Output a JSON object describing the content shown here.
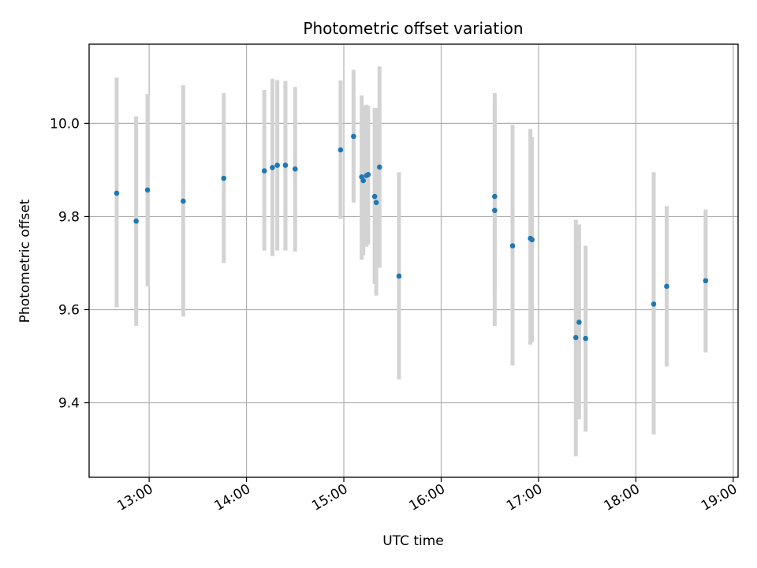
{
  "chart_data": {
    "type": "scatter",
    "title": "Photometric offset variation",
    "xlabel": "UTC time",
    "ylabel": "Photometric offset",
    "x_axis_kind": "time",
    "xlim": [
      "12:23",
      "19:03"
    ],
    "ylim": [
      9.24,
      10.17
    ],
    "xticks": [
      "13:00",
      "14:00",
      "15:00",
      "16:00",
      "17:00",
      "18:00",
      "19:00"
    ],
    "yticks": [
      "9.4",
      "9.6",
      "9.8",
      "10.0"
    ],
    "grid": true,
    "colors": {
      "marker": "#1f77b4",
      "errorbar": "#d3d3d3",
      "grid": "#b0b0b0",
      "axes": "#000000"
    },
    "series": [
      {
        "points": [
          {
            "x": "12:40",
            "y": 9.85,
            "ylow": 9.605,
            "yhigh": 10.098
          },
          {
            "x": "12:52",
            "y": 9.79,
            "ylow": 9.565,
            "yhigh": 10.015
          },
          {
            "x": "12:59",
            "y": 9.857,
            "ylow": 9.65,
            "yhigh": 10.063
          },
          {
            "x": "13:21",
            "y": 9.833,
            "ylow": 9.585,
            "yhigh": 10.082
          },
          {
            "x": "13:46",
            "y": 9.882,
            "ylow": 9.7,
            "yhigh": 10.065
          },
          {
            "x": "14:11",
            "y": 9.898,
            "ylow": 9.727,
            "yhigh": 10.072
          },
          {
            "x": "14:16",
            "y": 9.905,
            "ylow": 9.715,
            "yhigh": 10.096
          },
          {
            "x": "14:19",
            "y": 9.91,
            "ylow": 9.727,
            "yhigh": 10.093
          },
          {
            "x": "14:24",
            "y": 9.91,
            "ylow": 9.727,
            "yhigh": 10.091
          },
          {
            "x": "14:30",
            "y": 9.902,
            "ylow": 9.725,
            "yhigh": 10.078
          },
          {
            "x": "14:58",
            "y": 9.943,
            "ylow": 9.795,
            "yhigh": 10.092
          },
          {
            "x": "15:06",
            "y": 9.972,
            "ylow": 9.83,
            "yhigh": 10.115
          },
          {
            "x": "15:11",
            "y": 9.885,
            "ylow": 9.707,
            "yhigh": 10.06
          },
          {
            "x": "15:12",
            "y": 9.877,
            "ylow": 9.717,
            "yhigh": 10.038
          },
          {
            "x": "15:14",
            "y": 9.888,
            "ylow": 9.735,
            "yhigh": 10.04
          },
          {
            "x": "15:15",
            "y": 9.89,
            "ylow": 9.74,
            "yhigh": 10.038
          },
          {
            "x": "15:19",
            "y": 9.843,
            "ylow": 9.655,
            "yhigh": 10.033
          },
          {
            "x": "15:20",
            "y": 9.83,
            "ylow": 9.63,
            "yhigh": 10.033
          },
          {
            "x": "15:22",
            "y": 9.906,
            "ylow": 9.69,
            "yhigh": 10.122
          },
          {
            "x": "15:34",
            "y": 9.672,
            "ylow": 9.45,
            "yhigh": 9.895
          },
          {
            "x": "16:33",
            "y": 9.843,
            "ylow": 9.635,
            "yhigh": 10.05
          },
          {
            "x": "16:33",
            "y": 9.813,
            "ylow": 9.565,
            "yhigh": 10.065
          },
          {
            "x": "16:44",
            "y": 9.737,
            "ylow": 9.48,
            "yhigh": 9.997
          },
          {
            "x": "16:55",
            "y": 9.753,
            "ylow": 9.525,
            "yhigh": 9.988
          },
          {
            "x": "16:56",
            "y": 9.75,
            "ylow": 9.53,
            "yhigh": 9.97
          },
          {
            "x": "17:23",
            "y": 9.54,
            "ylow": 9.285,
            "yhigh": 9.793
          },
          {
            "x": "17:25",
            "y": 9.573,
            "ylow": 9.365,
            "yhigh": 9.783
          },
          {
            "x": "17:29",
            "y": 9.538,
            "ylow": 9.338,
            "yhigh": 9.737
          },
          {
            "x": "18:11",
            "y": 9.612,
            "ylow": 9.332,
            "yhigh": 9.895
          },
          {
            "x": "18:19",
            "y": 9.65,
            "ylow": 9.478,
            "yhigh": 9.822
          },
          {
            "x": "18:43",
            "y": 9.662,
            "ylow": 9.508,
            "yhigh": 9.815
          }
        ]
      }
    ]
  }
}
